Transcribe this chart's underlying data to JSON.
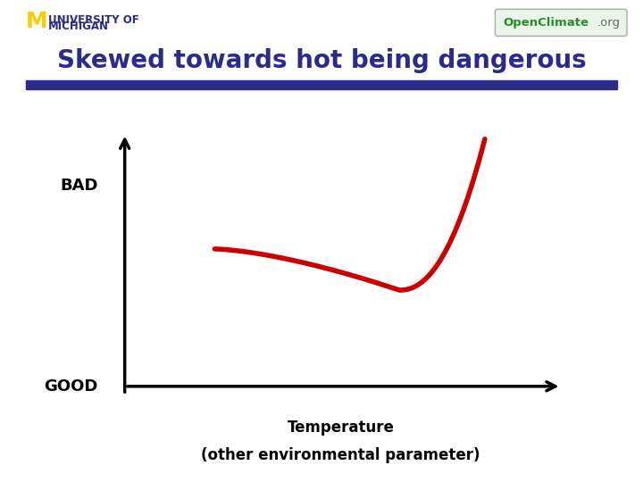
{
  "title": "Skewed towards hot being dangerous",
  "title_color": "#2B2B8C",
  "title_fontsize": 20,
  "xlabel_line1": "Temperature",
  "xlabel_line2": "(other environmental parameter)",
  "xlabel_fontsize": 12,
  "ylabel_bad": "BAD",
  "ylabel_good": "GOOD",
  "ylabel_fontsize": 13,
  "curve_color": "#CC0000",
  "curve_linewidth": 4,
  "background_color": "#FFFFFF",
  "bar_color": "#2B2B8C",
  "um_m_color": "#FFCC00",
  "um_text_color": "#2B2B8C",
  "oc_green_color": "#2B8C2B",
  "oc_gray_color": "#666666",
  "oc_box_color": "#E8F5E8"
}
